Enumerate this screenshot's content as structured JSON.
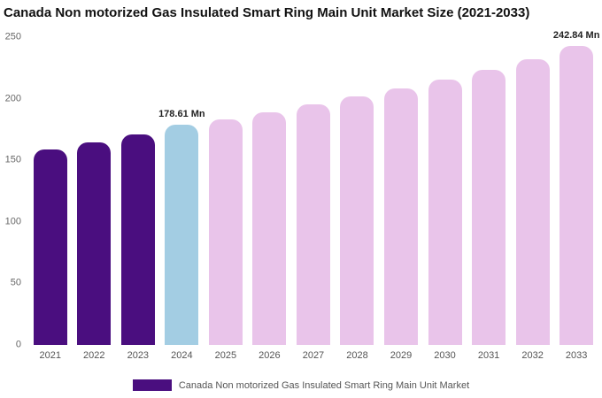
{
  "chart_data": {
    "type": "bar",
    "title": "Canada Non motorized Gas Insulated Smart Ring Main Unit Market Size (2021-2033)",
    "categories": [
      "2021",
      "2022",
      "2023",
      "2024",
      "2025",
      "2026",
      "2027",
      "2028",
      "2029",
      "2030",
      "2031",
      "2032",
      "2033"
    ],
    "values": [
      158.6,
      164.5,
      170.7,
      178.61,
      183.3,
      189.1,
      195.3,
      201.6,
      208.4,
      215.8,
      223.6,
      232.0,
      242.84
    ],
    "unit": "Mn",
    "ylim": [
      0,
      250
    ],
    "yticks": [
      0,
      50,
      100,
      150,
      200,
      250
    ],
    "grid": false,
    "bar_colors": [
      "#4a0e7f",
      "#4a0e7f",
      "#4a0e7f",
      "#a3cde3",
      "#e9c4ea",
      "#e9c4ea",
      "#e9c4ea",
      "#e9c4ea",
      "#e9c4ea",
      "#e9c4ea",
      "#e9c4ea",
      "#e9c4ea",
      "#e9c4ea"
    ],
    "annotations": [
      {
        "index": 3,
        "text": "178.61 Mn"
      },
      {
        "index": 12,
        "text": "242.84 Mn"
      }
    ],
    "legend": {
      "label": "Canada Non motorized Gas Insulated Smart Ring Main Unit Market",
      "swatch_color": "#4a0e7f",
      "position": "bottom"
    }
  }
}
